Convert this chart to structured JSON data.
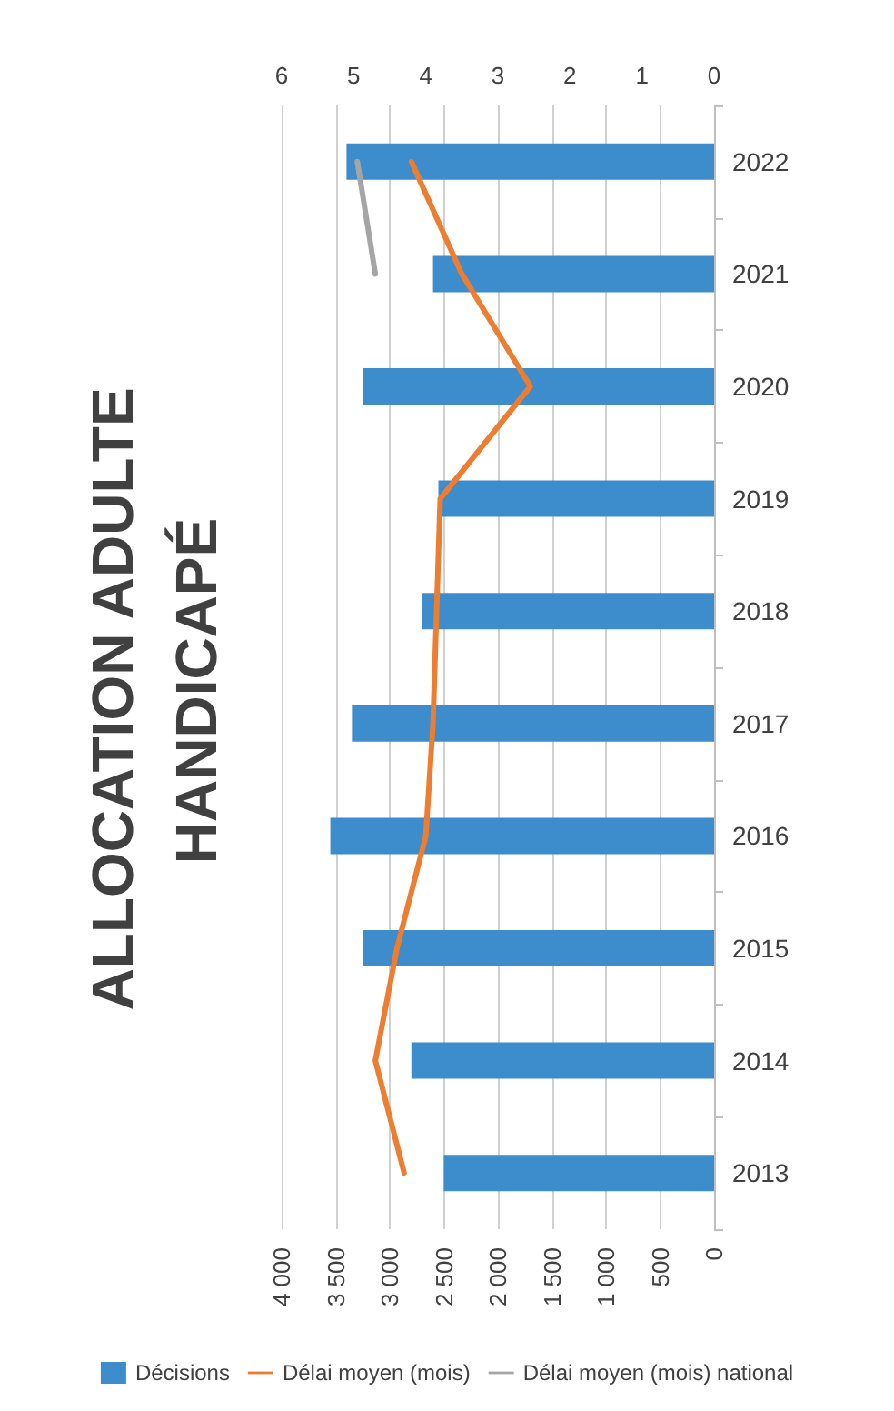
{
  "chart_data": {
    "type": "bar",
    "orientation": "horizontal",
    "title": "ALLOCATION ADULTE HANDICAPÉ",
    "categories": [
      "2022",
      "2021",
      "2020",
      "2019",
      "2018",
      "2017",
      "2016",
      "2015",
      "2014",
      "2013"
    ],
    "series": [
      {
        "name": "Décisions",
        "color": "#3d8ccb",
        "values": [
          3400,
          2600,
          3250,
          2550,
          2700,
          3350,
          3550,
          3250,
          2800,
          2500
        ]
      },
      {
        "name": "Délai moyen (mois)",
        "type": "line",
        "axis": "x2",
        "color": "#ed7d31",
        "values": [
          4.2,
          3.5,
          2.55,
          3.8,
          3.85,
          3.9,
          4.0,
          4.4,
          4.7,
          4.3
        ]
      },
      {
        "name": "Délai moyen (mois) national",
        "type": "line",
        "axis": "x2",
        "color": "#a5a5a5",
        "values": [
          4.95,
          4.7,
          null,
          null,
          null,
          null,
          null,
          null,
          null,
          null
        ]
      }
    ],
    "xlim": [
      4000,
      0
    ],
    "xticks": [
      0,
      500,
      {
        "value": 1000,
        "label": "1 000"
      },
      {
        "value": 1500,
        "label": "1 500"
      },
      {
        "value": 2000,
        "label": "2 000"
      },
      {
        "value": 2500,
        "label": "2 500"
      },
      {
        "value": 3000,
        "label": "3 000"
      },
      {
        "value": 3500,
        "label": "3 500"
      },
      {
        "value": 4000,
        "label": "4 000"
      }
    ],
    "x2lim": [
      6,
      0
    ],
    "x2ticks": [
      0,
      1,
      2,
      3,
      4,
      5,
      6
    ],
    "grid": "x",
    "legend": "bottom",
    "marker": "none",
    "line_style": "solid"
  }
}
